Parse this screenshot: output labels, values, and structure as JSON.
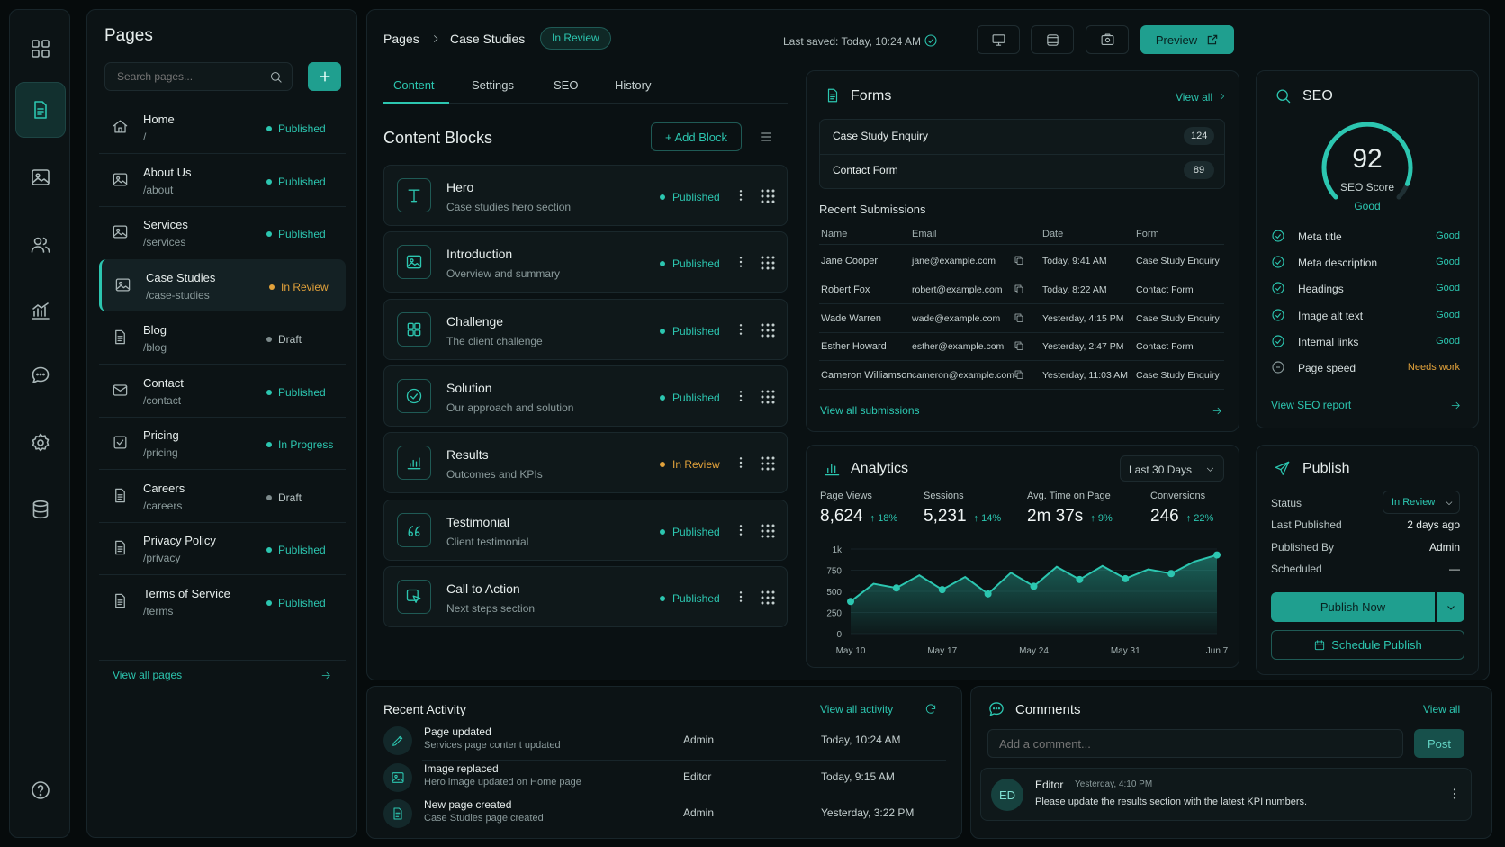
{
  "sidebar_title": "Pages",
  "search_placeholder": "Search pages...",
  "pages": [
    {
      "name": "Home",
      "path": "/",
      "status": "Published",
      "icon": "home-icon"
    },
    {
      "name": "About Us",
      "path": "/about",
      "status": "Published",
      "icon": "image-icon"
    },
    {
      "name": "Services",
      "path": "/services",
      "status": "Published",
      "icon": "image-icon"
    },
    {
      "name": "Case Studies",
      "path": "/case-studies",
      "status": "In Review",
      "icon": "image-icon"
    },
    {
      "name": "Blog",
      "path": "/blog",
      "status": "Draft",
      "icon": "document-icon"
    },
    {
      "name": "Contact",
      "path": "/contact",
      "status": "Published",
      "icon": "mail-icon"
    },
    {
      "name": "Pricing",
      "path": "/pricing",
      "status": "In Progress",
      "icon": "checkbox-icon"
    },
    {
      "name": "Careers",
      "path": "/careers",
      "status": "Draft",
      "icon": "document-icon"
    },
    {
      "name": "Privacy Policy",
      "path": "/privacy",
      "status": "Published",
      "icon": "document-icon"
    },
    {
      "name": "Terms of Service",
      "path": "/terms",
      "status": "Published",
      "icon": "document-icon"
    }
  ],
  "view_all_pages": "View all pages",
  "breadcrumb": {
    "root": "Pages",
    "current": "Case Studies",
    "badge": "In Review"
  },
  "last_saved": "Last saved: Today, 10:24 AM",
  "preview_label": "Preview",
  "tabs": [
    "Content",
    "Settings",
    "SEO",
    "History"
  ],
  "content_blocks_title": "Content Blocks",
  "add_block_label": "+ Add Block",
  "blocks": [
    {
      "title": "Hero",
      "subtitle": "Case studies hero section",
      "status": "Published",
      "icon": "text-icon"
    },
    {
      "title": "Introduction",
      "subtitle": "Overview and summary",
      "status": "Published",
      "icon": "image-icon"
    },
    {
      "title": "Challenge",
      "subtitle": "The client challenge",
      "status": "Published",
      "icon": "grid-icon"
    },
    {
      "title": "Solution",
      "subtitle": "Our approach and solution",
      "status": "Published",
      "icon": "check-circle-icon"
    },
    {
      "title": "Results",
      "subtitle": "Outcomes and KPIs",
      "status": "In Review",
      "icon": "bar-chart-icon"
    },
    {
      "title": "Testimonial",
      "subtitle": "Client testimonial",
      "status": "Published",
      "icon": "quote-icon"
    },
    {
      "title": "Call to Action",
      "subtitle": "Next steps section",
      "status": "Published",
      "icon": "cursor-icon"
    }
  ],
  "forms": {
    "title": "Forms",
    "view_all": "View all",
    "list": [
      {
        "name": "Case Study Enquiry",
        "count": "124"
      },
      {
        "name": "Contact Form",
        "count": "89"
      }
    ],
    "recent_title": "Recent Submissions",
    "columns": [
      "Name",
      "Email",
      "Date",
      "Form"
    ],
    "rows": [
      {
        "name": "Jane Cooper",
        "email": "jane@example.com",
        "date": "Today, 9:41 AM",
        "form": "Case Study Enquiry"
      },
      {
        "name": "Robert Fox",
        "email": "robert@example.com",
        "date": "Today, 8:22 AM",
        "form": "Contact Form"
      },
      {
        "name": "Wade Warren",
        "email": "wade@example.com",
        "date": "Yesterday, 4:15 PM",
        "form": "Case Study Enquiry"
      },
      {
        "name": "Esther Howard",
        "email": "esther@example.com",
        "date": "Yesterday, 2:47 PM",
        "form": "Contact Form"
      },
      {
        "name": "Cameron Williamson",
        "email": "cameron@example.com",
        "date": "Yesterday, 11:03 AM",
        "form": "Case Study Enquiry"
      }
    ],
    "view_all_submissions": "View all submissions"
  },
  "seo": {
    "title": "SEO",
    "score": "92",
    "score_label": "SEO Score",
    "score_rating": "Good",
    "score_fraction": 0.92,
    "checks": [
      {
        "label": "Meta title",
        "value": "Good",
        "ok": true
      },
      {
        "label": "Meta description",
        "value": "Good",
        "ok": true
      },
      {
        "label": "Headings",
        "value": "Good",
        "ok": true
      },
      {
        "label": "Image alt text",
        "value": "Good",
        "ok": true
      },
      {
        "label": "Internal links",
        "value": "Good",
        "ok": true
      },
      {
        "label": "Page speed",
        "value": "Needs work",
        "ok": false
      }
    ],
    "view_report": "View SEO report"
  },
  "analytics": {
    "title": "Analytics",
    "range": "Last 30 Days",
    "stats": [
      {
        "label": "Page Views",
        "value": "8,624",
        "delta": "18%"
      },
      {
        "label": "Sessions",
        "value": "5,231",
        "delta": "14%"
      },
      {
        "label": "Avg. Time on Page",
        "value": "2m 37s",
        "delta": "9%"
      },
      {
        "label": "Conversions",
        "value": "246",
        "delta": "22%"
      }
    ]
  },
  "chart_data": {
    "type": "area",
    "x": [
      "May 10",
      "",
      "May 14",
      "",
      "May 17",
      "",
      "May 21",
      "",
      "May 24",
      "",
      "May 28",
      "",
      "May 31",
      "",
      "Jun 4",
      "",
      "Jun 7"
    ],
    "x_ticks": [
      "May 10",
      "May 17",
      "May 24",
      "May 31",
      "Jun 7"
    ],
    "y_ticks": [
      "0",
      "250",
      "500",
      "750",
      "1k"
    ],
    "ylim": [
      0,
      1000
    ],
    "values": [
      380,
      590,
      540,
      690,
      520,
      670,
      470,
      720,
      560,
      790,
      640,
      800,
      650,
      760,
      710,
      850,
      930
    ],
    "accent": "#2cc6b0"
  },
  "publish": {
    "title": "Publish",
    "rows": [
      {
        "label": "Status",
        "value": "In Review"
      },
      {
        "label": "Last Published",
        "value": "2 days ago"
      },
      {
        "label": "Published By",
        "value": "Admin"
      },
      {
        "label": "Scheduled",
        "value": "—"
      }
    ],
    "publish_now": "Publish Now",
    "schedule": "Schedule Publish"
  },
  "activity": {
    "title": "Recent Activity",
    "view_all": "View all activity",
    "items": [
      {
        "title": "Page updated",
        "sub": "Services page content updated",
        "user": "Admin",
        "time": "Today, 10:24 AM",
        "icon": "pencil-icon"
      },
      {
        "title": "Image replaced",
        "sub": "Hero image updated on Home page",
        "user": "Editor",
        "time": "Today, 9:15 AM",
        "icon": "image-icon"
      },
      {
        "title": "New page created",
        "sub": "Case Studies page created",
        "user": "Admin",
        "time": "Yesterday, 3:22 PM",
        "icon": "document-icon"
      }
    ]
  },
  "comments": {
    "title": "Comments",
    "view_all": "View all",
    "placeholder": "Add a comment...",
    "post": "Post",
    "item": {
      "initials": "ED",
      "author": "Editor",
      "time": "Yesterday, 4:10 PM",
      "text": "Please update the results section with the latest KPI numbers."
    }
  },
  "colors": {
    "accent": "#2cc6b0",
    "amber": "#e2a23b",
    "draft": "#7d8a8b",
    "bg": "#060b0c"
  }
}
